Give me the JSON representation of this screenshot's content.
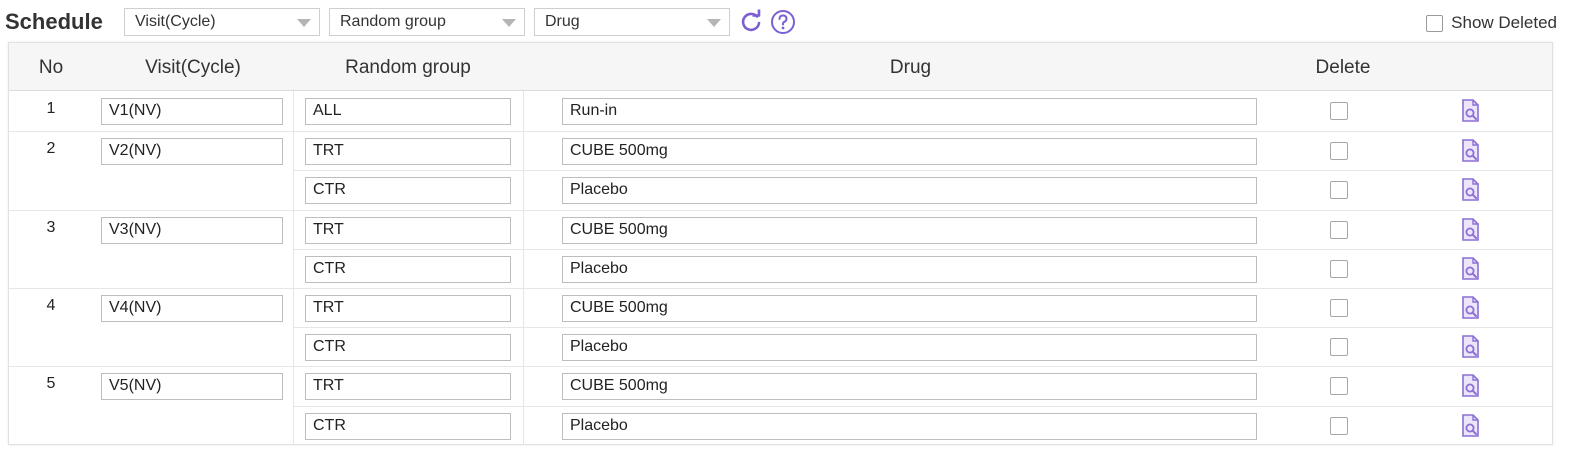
{
  "header": {
    "title": "Schedule",
    "filters": [
      {
        "label": "Visit(Cycle)"
      },
      {
        "label": "Random group"
      },
      {
        "label": "Drug"
      }
    ],
    "refresh_icon": "refresh-icon",
    "help_icon": "help-icon",
    "show_deleted_label": "Show Deleted",
    "accent_color": "#7b5fd3"
  },
  "table": {
    "columns": [
      "No",
      "Visit(Cycle)",
      "Random group",
      "Drug",
      "Delete"
    ],
    "rows": [
      {
        "no": "1",
        "visit": "V1(NV)",
        "group": "ALL",
        "drug": "Run-in"
      },
      {
        "no": "2",
        "visit": "V2(NV)",
        "group": "TRT",
        "drug": "CUBE 500mg"
      },
      {
        "no": "",
        "visit": "",
        "group": "CTR",
        "drug": "Placebo"
      },
      {
        "no": "3",
        "visit": "V3(NV)",
        "group": "TRT",
        "drug": "CUBE 500mg"
      },
      {
        "no": "",
        "visit": "",
        "group": "CTR",
        "drug": "Placebo"
      },
      {
        "no": "4",
        "visit": "V4(NV)",
        "group": "TRT",
        "drug": "CUBE 500mg"
      },
      {
        "no": "",
        "visit": "",
        "group": "CTR",
        "drug": "Placebo"
      },
      {
        "no": "5",
        "visit": "V5(NV)",
        "group": "TRT",
        "drug": "CUBE 500mg"
      },
      {
        "no": "",
        "visit": "",
        "group": "CTR",
        "drug": "Placebo"
      }
    ]
  }
}
